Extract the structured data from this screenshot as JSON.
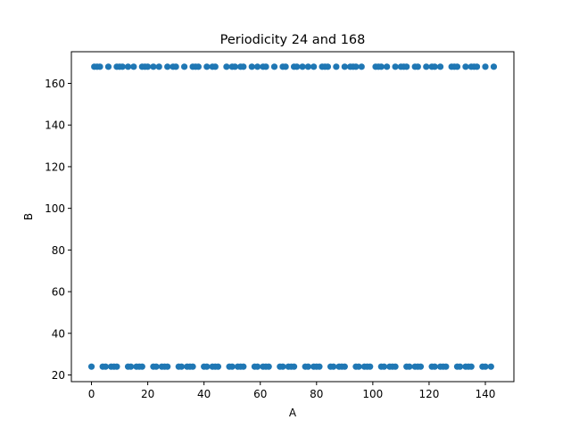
{
  "chart_data": {
    "type": "scatter",
    "title": "Periodicity 24 and 168",
    "xlabel": "A",
    "ylabel": "B",
    "xlim": [
      -7.15,
      150.15
    ],
    "ylim": [
      16.8,
      175.2
    ],
    "xticks": [
      0,
      20,
      40,
      60,
      80,
      100,
      120,
      140
    ],
    "yticks": [
      20,
      40,
      60,
      80,
      100,
      120,
      140,
      160
    ],
    "grid": false,
    "legend": "none",
    "color": "#1f77b4",
    "series": [
      {
        "values_x": [
          1,
          2,
          3,
          6,
          9,
          10,
          11,
          13,
          15,
          18,
          19,
          20,
          22,
          24,
          27,
          29,
          30,
          33,
          36,
          37,
          38,
          41,
          43,
          44,
          48,
          50,
          51,
          53,
          54,
          57,
          59,
          61,
          62,
          65,
          68,
          69,
          72,
          73,
          75,
          77,
          79,
          82,
          83,
          84,
          87,
          90,
          92,
          93,
          94,
          96,
          101,
          102,
          103,
          105,
          108,
          110,
          111,
          112,
          115,
          116,
          119,
          121,
          122,
          124,
          128,
          129,
          130,
          133,
          135,
          136,
          137,
          140,
          143
        ],
        "values_y": [
          168,
          168,
          168,
          168,
          168,
          168,
          168,
          168,
          168,
          168,
          168,
          168,
          168,
          168,
          168,
          168,
          168,
          168,
          168,
          168,
          168,
          168,
          168,
          168,
          168,
          168,
          168,
          168,
          168,
          168,
          168,
          168,
          168,
          168,
          168,
          168,
          168,
          168,
          168,
          168,
          168,
          168,
          168,
          168,
          168,
          168,
          168,
          168,
          168,
          168,
          168,
          168,
          168,
          168,
          168,
          168,
          168,
          168,
          168,
          168,
          168,
          168,
          168,
          168,
          168,
          168,
          168,
          168,
          168,
          168,
          168,
          168,
          168
        ]
      },
      {
        "values_x": [
          0,
          4,
          5,
          7,
          8,
          9,
          13,
          14,
          16,
          17,
          18,
          22,
          23,
          25,
          26,
          27,
          31,
          32,
          34,
          35,
          36,
          40,
          41,
          43,
          44,
          45,
          49,
          50,
          52,
          53,
          54,
          58,
          59,
          61,
          62,
          63,
          67,
          68,
          70,
          71,
          72,
          76,
          77,
          79,
          80,
          81,
          85,
          86,
          88,
          89,
          90,
          94,
          95,
          97,
          98,
          99,
          103,
          104,
          106,
          107,
          108,
          112,
          113,
          115,
          116,
          117,
          121,
          122,
          124,
          125,
          126,
          130,
          131,
          133,
          134,
          135,
          139,
          140,
          142
        ],
        "values_y": [
          24,
          24,
          24,
          24,
          24,
          24,
          24,
          24,
          24,
          24,
          24,
          24,
          24,
          24,
          24,
          24,
          24,
          24,
          24,
          24,
          24,
          24,
          24,
          24,
          24,
          24,
          24,
          24,
          24,
          24,
          24,
          24,
          24,
          24,
          24,
          24,
          24,
          24,
          24,
          24,
          24,
          24,
          24,
          24,
          24,
          24,
          24,
          24,
          24,
          24,
          24,
          24,
          24,
          24,
          24,
          24,
          24,
          24,
          24,
          24,
          24,
          24,
          24,
          24,
          24,
          24,
          24,
          24,
          24,
          24,
          24,
          24,
          24,
          24,
          24,
          24,
          24,
          24,
          24
        ]
      }
    ]
  }
}
